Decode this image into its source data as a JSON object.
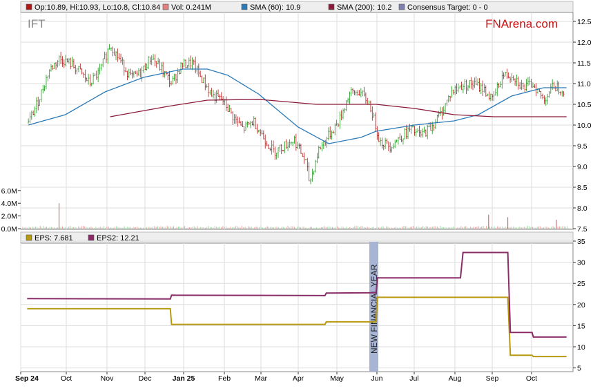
{
  "ticker": "IFT",
  "brand": "FNArena.com",
  "colors": {
    "up": "#1a9a1a",
    "down": "#b01818",
    "sma60": "#2a7ab8",
    "sma200": "#8a1a3a",
    "eps": "#b89a10",
    "eps2": "#8a2c68",
    "volume": "#d07070",
    "consensus": "#8080b0",
    "nfy_band": "#a8b4d4"
  },
  "legend_top": [
    {
      "name": "ohlc",
      "label": "Op:10.89, Hi:10.93, Lo:10.8, Cl:10.84",
      "color": "#b01818"
    },
    {
      "name": "volume",
      "label": "Vol: 0.241M",
      "color": "#e08080"
    },
    {
      "name": "sma60",
      "label": "SMA (60): 10.9",
      "color": "#2a7ab8"
    },
    {
      "name": "sma200",
      "label": "SMA (200): 10.2",
      "color": "#8a1a3a"
    },
    {
      "name": "consensus",
      "label": "Consensus Target: 0 - 0",
      "color": "#8080b0"
    }
  ],
  "legend_bottom": [
    {
      "name": "eps",
      "label": "EPS: 7.681",
      "color": "#b89a10"
    },
    {
      "name": "eps2",
      "label": "EPS2: 12.21",
      "color": "#8a2c68"
    }
  ],
  "annotation": "NEW FINANCIAL YEAR",
  "chart_data": [
    {
      "type": "line",
      "title": "IFT",
      "x_labels": [
        "Sep 24",
        "Oct",
        "Nov",
        "Dec",
        "Jan 25",
        "Feb",
        "Mar",
        "Apr",
        "May",
        "Jun",
        "Jul",
        "Aug",
        "Sep",
        "Oct"
      ],
      "price_axis": {
        "ylim": [
          7.5,
          12.5
        ],
        "ticks": [
          "12.5",
          "12.0",
          "11.5",
          "11.0",
          "10.5",
          "10.0",
          "9.5",
          "9.0",
          "8.5",
          "8.0",
          "7.5"
        ]
      },
      "volume_axis": {
        "ticks": [
          "6.0M",
          "4.0M",
          "2.0M",
          "0.0M"
        ]
      },
      "price_path": [
        [
          "2024-09-02",
          10.05
        ],
        [
          "2024-09-10",
          10.6
        ],
        [
          "2024-09-18",
          11.3
        ],
        [
          "2024-09-26",
          11.6
        ],
        [
          "2024-10-04",
          11.5
        ],
        [
          "2024-10-12",
          11.3
        ],
        [
          "2024-10-20",
          11.0
        ],
        [
          "2024-10-28",
          11.3
        ],
        [
          "2024-11-05",
          11.95
        ],
        [
          "2024-11-13",
          11.55
        ],
        [
          "2024-11-21",
          11.15
        ],
        [
          "2024-11-29",
          11.25
        ],
        [
          "2024-12-07",
          11.65
        ],
        [
          "2024-12-15",
          11.35
        ],
        [
          "2024-12-23",
          11.0
        ],
        [
          "2024-12-31",
          11.45
        ],
        [
          "2025-01-08",
          11.5
        ],
        [
          "2025-01-16",
          11.1
        ],
        [
          "2025-01-24",
          10.7
        ],
        [
          "2025-02-01",
          10.6
        ],
        [
          "2025-02-09",
          10.2
        ],
        [
          "2025-02-17",
          9.9
        ],
        [
          "2025-02-25",
          10.1
        ],
        [
          "2025-03-05",
          9.7
        ],
        [
          "2025-03-13",
          9.35
        ],
        [
          "2025-03-21",
          9.5
        ],
        [
          "2025-03-29",
          9.65
        ],
        [
          "2025-04-07",
          9.1
        ],
        [
          "2025-04-10",
          8.6
        ],
        [
          "2025-04-17",
          9.4
        ],
        [
          "2025-04-25",
          9.75
        ],
        [
          "2025-05-03",
          10.1
        ],
        [
          "2025-05-11",
          10.75
        ],
        [
          "2025-05-19",
          10.8
        ],
        [
          "2025-05-27",
          10.5
        ],
        [
          "2025-06-04",
          9.6
        ],
        [
          "2025-06-12",
          9.5
        ],
        [
          "2025-06-20",
          9.7
        ],
        [
          "2025-06-28",
          9.9
        ],
        [
          "2025-07-06",
          9.75
        ],
        [
          "2025-07-14",
          9.95
        ],
        [
          "2025-07-22",
          10.3
        ],
        [
          "2025-07-30",
          10.8
        ],
        [
          "2025-08-07",
          10.95
        ],
        [
          "2025-08-15",
          11.0
        ],
        [
          "2025-08-23",
          10.9
        ],
        [
          "2025-08-31",
          10.6
        ],
        [
          "2025-09-08",
          11.2
        ],
        [
          "2025-09-16",
          11.2
        ],
        [
          "2025-09-24",
          10.9
        ],
        [
          "2025-10-02",
          11.0
        ],
        [
          "2025-10-10",
          10.6
        ],
        [
          "2025-10-18",
          10.95
        ],
        [
          "2025-10-26",
          10.84
        ]
      ],
      "volume_spikes": [
        [
          "2024-09-26",
          4.0
        ],
        [
          "2025-08-28",
          2.2
        ],
        [
          "2025-09-12",
          1.8
        ],
        [
          "2025-10-20",
          1.4
        ]
      ],
      "series": [
        {
          "name": "SMA (60)",
          "values": [
            [
              "2024-09-02",
              10.0
            ],
            [
              "2024-10-01",
              10.25
            ],
            [
              "2024-11-01",
              10.8
            ],
            [
              "2024-12-01",
              11.15
            ],
            [
              "2025-01-01",
              11.35
            ],
            [
              "2025-01-20",
              11.35
            ],
            [
              "2025-02-05",
              11.2
            ],
            [
              "2025-03-01",
              10.75
            ],
            [
              "2025-04-01",
              9.95
            ],
            [
              "2025-04-25",
              9.55
            ],
            [
              "2025-05-20",
              9.7
            ],
            [
              "2025-06-01",
              9.85
            ],
            [
              "2025-07-01",
              10.0
            ],
            [
              "2025-08-01",
              10.1
            ],
            [
              "2025-08-20",
              10.25
            ],
            [
              "2025-09-15",
              10.7
            ],
            [
              "2025-10-10",
              10.9
            ],
            [
              "2025-10-28",
              10.9
            ]
          ]
        },
        {
          "name": "SMA (200)",
          "values": [
            [
              "2024-11-05",
              10.2
            ],
            [
              "2024-12-20",
              10.45
            ],
            [
              "2025-01-20",
              10.6
            ],
            [
              "2025-03-01",
              10.62
            ],
            [
              "2025-04-15",
              10.5
            ],
            [
              "2025-06-01",
              10.5
            ],
            [
              "2025-07-01",
              10.4
            ],
            [
              "2025-08-01",
              10.25
            ],
            [
              "2025-09-01",
              10.2
            ],
            [
              "2025-10-28",
              10.2
            ]
          ]
        }
      ]
    },
    {
      "type": "line",
      "x_labels": [
        "Sep 24",
        "Oct",
        "Nov",
        "Dec",
        "Jan 25",
        "Feb",
        "Mar",
        "Apr",
        "May",
        "Jun",
        "Jul",
        "Aug",
        "Sep",
        "Oct"
      ],
      "ylim": [
        0,
        35
      ],
      "y_ticks": [
        "35",
        "30",
        "25",
        "20",
        "15",
        "10",
        "5"
      ],
      "series": [
        {
          "name": "EPS",
          "values": [
            [
              "2024-09-01",
              19.0
            ],
            [
              "2024-12-22",
              19.0
            ],
            [
              "2024-12-23",
              15.3
            ],
            [
              "2025-04-22",
              15.3
            ],
            [
              "2025-04-23",
              15.9
            ],
            [
              "2025-06-01",
              15.9
            ],
            [
              "2025-06-02",
              21.7
            ],
            [
              "2025-09-12",
              21.7
            ],
            [
              "2025-09-14",
              8.0
            ],
            [
              "2025-10-01",
              8.0
            ],
            [
              "2025-10-02",
              7.7
            ],
            [
              "2025-10-28",
              7.7
            ]
          ]
        },
        {
          "name": "EPS2",
          "values": [
            [
              "2024-09-01",
              21.4
            ],
            [
              "2024-12-22",
              21.3
            ],
            [
              "2024-12-23",
              22.2
            ],
            [
              "2025-04-22",
              22.1
            ],
            [
              "2025-04-23",
              22.7
            ],
            [
              "2025-06-01",
              22.8
            ],
            [
              "2025-06-02",
              26.3
            ],
            [
              "2025-08-06",
              26.3
            ],
            [
              "2025-08-08",
              32.3
            ],
            [
              "2025-09-12",
              32.3
            ],
            [
              "2025-09-14",
              13.4
            ],
            [
              "2025-10-01",
              13.4
            ],
            [
              "2025-10-02",
              12.3
            ],
            [
              "2025-10-28",
              12.3
            ]
          ]
        }
      ],
      "annotation": "NEW FINANCIAL YEAR"
    }
  ]
}
